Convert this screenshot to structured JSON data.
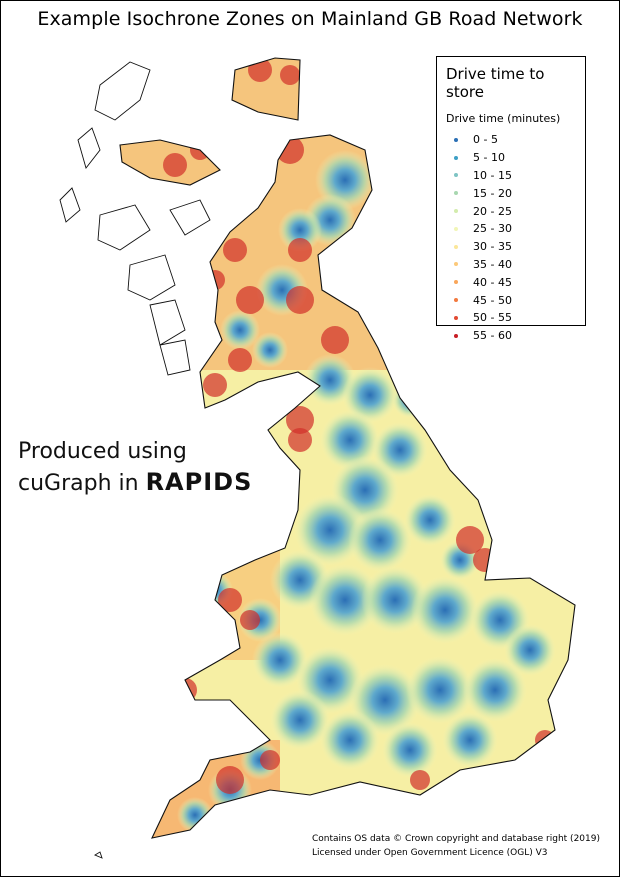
{
  "title": "Example Isochrone Zones on Mainland GB Road Network",
  "legend": {
    "title": "Drive time to store",
    "subtitle": "Drive time (minutes)",
    "items": [
      {
        "label": "0 - 5",
        "color": "#2b6fb5"
      },
      {
        "label": "5 - 10",
        "color": "#3d9fc5"
      },
      {
        "label": "10 - 15",
        "color": "#7ec4c4"
      },
      {
        "label": "15 - 20",
        "color": "#a8d7b0"
      },
      {
        "label": "20 - 25",
        "color": "#d3ecad"
      },
      {
        "label": "25 - 30",
        "color": "#f1f6b7"
      },
      {
        "label": "30 - 35",
        "color": "#fbe79a"
      },
      {
        "label": "35 - 40",
        "color": "#fcc97a"
      },
      {
        "label": "40 - 45",
        "color": "#f9a65a"
      },
      {
        "label": "45 - 50",
        "color": "#f2793f"
      },
      {
        "label": "50 - 55",
        "color": "#e24a33"
      },
      {
        "label": "55 - 60",
        "color": "#c81d25"
      }
    ]
  },
  "produced": {
    "line1": "Produced using",
    "line2_prefix": "cuGraph in ",
    "brand": "RAPIDS"
  },
  "credits": {
    "line1": "Contains OS data © Crown copyright and database right (2019)",
    "line2": "Licensed under Open Government Licence (OGL) V3"
  }
}
